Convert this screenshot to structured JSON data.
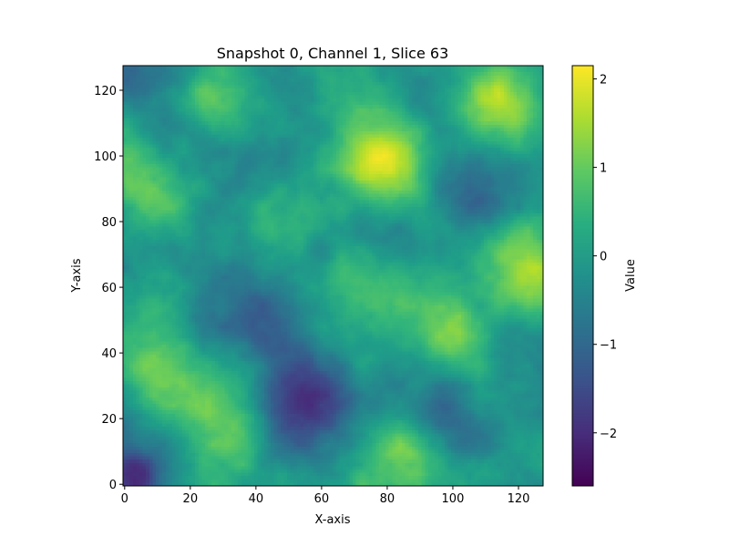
{
  "chart_data": {
    "type": "heatmap",
    "title": "Snapshot 0, Channel 1, Slice 63",
    "xlabel": "X-axis",
    "ylabel": "Y-axis",
    "xlim": [
      -0.5,
      127.5
    ],
    "ylim": [
      -0.5,
      127.5
    ],
    "x_ticks": [
      0,
      20,
      40,
      60,
      80,
      100,
      120
    ],
    "y_ticks": [
      0,
      20,
      40,
      60,
      80,
      100,
      120
    ],
    "grid_size": [
      128,
      128
    ],
    "colormap": "viridis",
    "colorbar": {
      "label": "Value",
      "range": [
        -2.6,
        2.15
      ],
      "ticks": [
        2,
        1,
        0,
        -1,
        -2
      ],
      "tick_labels": [
        "2",
        "1",
        "0",
        "−1",
        "−2"
      ]
    },
    "features": [
      {
        "x": 82,
        "y": 97,
        "value": 2.0
      },
      {
        "x": 112,
        "y": 115,
        "value": 1.7
      },
      {
        "x": 124,
        "y": 60,
        "value": 1.9
      },
      {
        "x": 118,
        "y": 75,
        "value": 1.1
      },
      {
        "x": 28,
        "y": 115,
        "value": 1.1
      },
      {
        "x": 45,
        "y": 85,
        "value": 1.0
      },
      {
        "x": 12,
        "y": 88,
        "value": 1.2
      },
      {
        "x": 72,
        "y": 68,
        "value": 1.0
      },
      {
        "x": 10,
        "y": 35,
        "value": 1.0
      },
      {
        "x": 30,
        "y": 22,
        "value": 1.2
      },
      {
        "x": 85,
        "y": 8,
        "value": 1.0
      },
      {
        "x": 100,
        "y": 45,
        "value": 0.8
      },
      {
        "x": 108,
        "y": 85,
        "value": -1.3
      },
      {
        "x": 75,
        "y": 82,
        "value": -1.0
      },
      {
        "x": 60,
        "y": 28,
        "value": -1.5
      },
      {
        "x": 50,
        "y": 25,
        "value": -1.4
      },
      {
        "x": 100,
        "y": 20,
        "value": -1.2
      },
      {
        "x": 40,
        "y": 50,
        "value": -1.0
      },
      {
        "x": 5,
        "y": 125,
        "value": -1.6
      },
      {
        "x": 3,
        "y": 3,
        "value": -2.5
      },
      {
        "x": 55,
        "y": 12,
        "value": -0.9
      }
    ],
    "background_value": -0.15
  }
}
